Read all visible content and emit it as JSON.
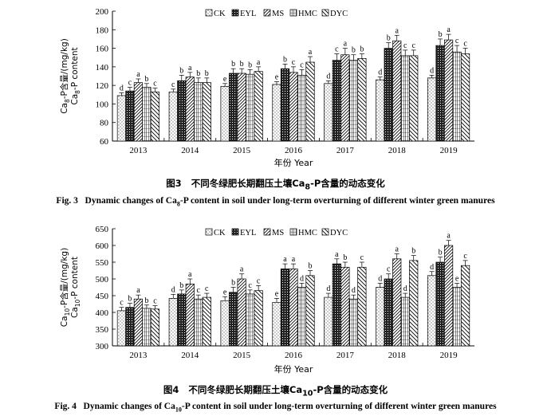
{
  "chart_data": [
    {
      "type": "bar",
      "figure_label": "图3",
      "caption_cn": "不同冬绿肥长期翻压土壤Ca8-P含量的动态变化",
      "caption_en_prefix": "Fig. 3",
      "caption_en": "Dynamic changes of Ca8-P content in soil under long-term overturning of different winter green manures",
      "xlabel": "年份 Year",
      "ylabel_cn": "Ca8-P含量/(mg/kg)",
      "ylabel_en": "Ca8-P content",
      "ylim": [
        60,
        200
      ],
      "yticks": [
        60,
        80,
        100,
        120,
        140,
        160,
        180,
        200
      ],
      "categories": [
        "2013",
        "2014",
        "2015",
        "2016",
        "2017",
        "2018",
        "2019"
      ],
      "legend": [
        "CK",
        "EYL",
        "MS",
        "HMC",
        "DYC"
      ],
      "series": [
        {
          "name": "CK",
          "values": [
            109,
            113,
            119,
            121,
            122,
            126,
            128
          ],
          "errors": [
            3,
            3,
            3,
            3,
            3,
            3,
            3
          ],
          "letters": [
            "d",
            "c",
            "e",
            "e",
            "d",
            "d",
            "d"
          ]
        },
        {
          "name": "EYL",
          "values": [
            114,
            125,
            133,
            138,
            147,
            160,
            163
          ],
          "errors": [
            4,
            6,
            5,
            5,
            7,
            6,
            7
          ],
          "letters": [
            "c",
            "b",
            "b",
            "b",
            "c",
            "b",
            "b"
          ]
        },
        {
          "name": "MS",
          "values": [
            123,
            129,
            133,
            134,
            153,
            168,
            169
          ],
          "errors": [
            4,
            5,
            5,
            6,
            7,
            6,
            6
          ],
          "letters": [
            "a",
            "a",
            "b",
            "c",
            "a",
            "a",
            "a"
          ]
        },
        {
          "name": "HMC",
          "values": [
            118,
            123,
            132,
            131,
            147,
            152,
            156
          ],
          "errors": [
            4,
            5,
            5,
            6,
            6,
            6,
            7
          ],
          "letters": [
            "b",
            "b",
            "b",
            "c",
            "b",
            "c",
            "c"
          ]
        },
        {
          "name": "DYC",
          "values": [
            113,
            123,
            135,
            145,
            149,
            152,
            154
          ],
          "errors": [
            4,
            5,
            5,
            6,
            5,
            6,
            6
          ],
          "letters": [
            "c",
            "b",
            "a",
            "a",
            "b",
            "c",
            "c"
          ]
        }
      ]
    },
    {
      "type": "bar",
      "figure_label": "图4",
      "caption_cn": "不同冬绿肥长期翻压土壤Ca10-P含量的动态变化",
      "caption_en_prefix": "Fig. 4",
      "caption_en": "Dynamic changes of Ca10-P content in soil under long-term overturning of different winter green manures",
      "xlabel": "年份 Year",
      "ylabel_cn": "Ca10-P含量/(mg/kg)",
      "ylabel_en": "Ca10-P content",
      "ylim": [
        300,
        650
      ],
      "yticks": [
        300,
        350,
        400,
        450,
        500,
        550,
        600,
        650
      ],
      "categories": [
        "2013",
        "2014",
        "2015",
        "2016",
        "2017",
        "2018",
        "2019"
      ],
      "legend": [
        "CK",
        "EYL",
        "MS",
        "HMC",
        "DYC"
      ],
      "series": [
        {
          "name": "CK",
          "values": [
            405,
            442,
            435,
            430,
            445,
            475,
            510
          ],
          "errors": [
            10,
            12,
            12,
            12,
            12,
            12,
            12
          ],
          "letters": [
            "c",
            "d",
            "e",
            "e",
            "d",
            "d",
            "d"
          ]
        },
        {
          "name": "EYL",
          "values": [
            415,
            455,
            460,
            530,
            545,
            500,
            550
          ],
          "errors": [
            12,
            12,
            15,
            15,
            15,
            15,
            15
          ],
          "letters": [
            "b",
            "b",
            "b",
            "a",
            "a",
            "c",
            "b"
          ]
        },
        {
          "name": "MS",
          "values": [
            440,
            485,
            500,
            530,
            535,
            560,
            600
          ],
          "errors": [
            12,
            15,
            15,
            15,
            15,
            15,
            15
          ],
          "letters": [
            "a",
            "a",
            "a",
            "a",
            "b",
            "a",
            "a"
          ]
        },
        {
          "name": "HMC",
          "values": [
            412,
            440,
            455,
            475,
            440,
            445,
            475
          ],
          "errors": [
            10,
            12,
            12,
            12,
            12,
            12,
            12
          ],
          "letters": [
            "b",
            "c",
            "c",
            "d",
            "d",
            "d",
            "e"
          ]
        },
        {
          "name": "DYC",
          "values": [
            410,
            445,
            465,
            510,
            535,
            555,
            540
          ],
          "errors": [
            10,
            12,
            15,
            15,
            15,
            15,
            15
          ],
          "letters": [
            "c",
            "c",
            "c",
            "b",
            "c",
            "b",
            "c"
          ]
        }
      ]
    }
  ]
}
